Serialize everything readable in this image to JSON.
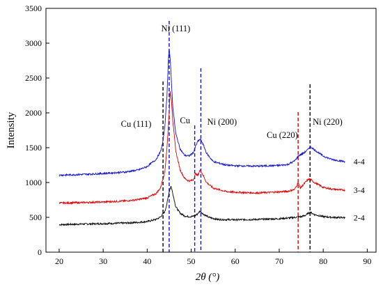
{
  "chart_data": {
    "type": "line",
    "xlabel": "2θ (°)",
    "ylabel": "Intensity",
    "xlim": [
      17,
      92
    ],
    "ylim": [
      0,
      3500
    ],
    "xticks": [
      20,
      30,
      40,
      50,
      60,
      70,
      80,
      90
    ],
    "yticks": [
      0,
      500,
      1000,
      1500,
      2000,
      2500,
      3000,
      3500
    ],
    "grid": false,
    "colors": {
      "series_2_4": "#000000",
      "series_3_4": "#e00000",
      "series_4_4": "#1010d0"
    },
    "series": [
      {
        "name": "2-4",
        "color": "#000000",
        "x": [
          20,
          25,
          30,
          35,
          38,
          40,
          42,
          43,
          44,
          44.5,
          45,
          45.4,
          45.8,
          46.5,
          47.5,
          48.5,
          49.5,
          50.5,
          51.3,
          52,
          52.8,
          54,
          56,
          60,
          65,
          70,
          73,
          75,
          76,
          77,
          78,
          80,
          82,
          85
        ],
        "y": [
          395,
          403,
          410,
          418,
          428,
          440,
          470,
          505,
          580,
          700,
          870,
          950,
          850,
          650,
          560,
          520,
          510,
          515,
          540,
          590,
          545,
          500,
          470,
          465,
          470,
          480,
          495,
          510,
          530,
          575,
          540,
          510,
          500,
          495
        ]
      },
      {
        "name": "3-4",
        "color": "#e00000",
        "x": [
          20,
          25,
          30,
          35,
          38,
          40,
          42,
          43,
          44,
          44.5,
          45,
          45.2,
          45.5,
          45.8,
          46.5,
          47.5,
          48.5,
          49.5,
          50.5,
          51,
          51.5,
          52,
          52.5,
          53.5,
          55,
          58,
          60,
          65,
          70,
          72,
          73.5,
          74,
          74.3,
          74.8,
          75.5,
          76.5,
          77,
          78,
          80,
          82,
          85
        ],
        "y": [
          705,
          712,
          720,
          735,
          755,
          780,
          840,
          920,
          1150,
          1500,
          2000,
          2300,
          2200,
          1900,
          1450,
          1180,
          1060,
          1020,
          1040,
          1130,
          1100,
          1180,
          1130,
          1000,
          920,
          870,
          860,
          850,
          865,
          875,
          900,
          960,
          1000,
          920,
          970,
          1040,
          1050,
          1000,
          930,
          905,
          890
        ]
      },
      {
        "name": "4-4",
        "color": "#1010d0",
        "x": [
          20,
          25,
          30,
          35,
          38,
          40,
          42,
          43,
          43.5,
          44,
          44.5,
          44.8,
          45,
          45.3,
          45.8,
          46.5,
          47.5,
          48.5,
          49.5,
          50.5,
          51,
          51.5,
          52,
          52.5,
          53.5,
          55,
          58,
          60,
          65,
          70,
          72,
          73.5,
          74.5,
          75.5,
          76.5,
          77,
          78,
          80,
          82,
          85
        ],
        "y": [
          1105,
          1115,
          1130,
          1150,
          1180,
          1230,
          1330,
          1440,
          1560,
          1800,
          2250,
          2750,
          2930,
          2700,
          2100,
          1700,
          1480,
          1390,
          1380,
          1430,
          1520,
          1590,
          1620,
          1580,
          1420,
          1300,
          1250,
          1240,
          1235,
          1245,
          1260,
          1310,
          1390,
          1420,
          1470,
          1520,
          1470,
          1380,
          1330,
          1300
        ]
      }
    ],
    "series_labels": [
      {
        "text": "4-4",
        "y": 1300
      },
      {
        "text": "3-4",
        "y": 890
      },
      {
        "text": "2-4",
        "y": 495
      }
    ],
    "reference_lines": [
      {
        "x": 43.6,
        "color": "#000000",
        "y_top": 2450
      },
      {
        "x": 45.0,
        "color": "#1010d0",
        "y_top": 3320
      },
      {
        "x": 50.8,
        "color": "#1010d0",
        "y_top": 1820
      },
      {
        "x": 52.2,
        "color": "#1010d0",
        "y_top": 2640
      },
      {
        "x": 74.3,
        "color": "#e00000",
        "y_top": 2010
      },
      {
        "x": 77.0,
        "color": "#000000",
        "y_top": 2410
      }
    ],
    "annotations": [
      {
        "text": "Ni (111)",
        "x": 46.5,
        "y": 3170
      },
      {
        "text": "Cu (111)",
        "x": 37.5,
        "y": 1800
      },
      {
        "text": "Cu",
        "x": 48.6,
        "y": 1850
      },
      {
        "text": "Ni (200)",
        "x": 57.0,
        "y": 1830
      },
      {
        "text": "Cu (220)",
        "x": 70.7,
        "y": 1640
      },
      {
        "text": "Ni (220)",
        "x": 81.0,
        "y": 1830
      }
    ]
  }
}
